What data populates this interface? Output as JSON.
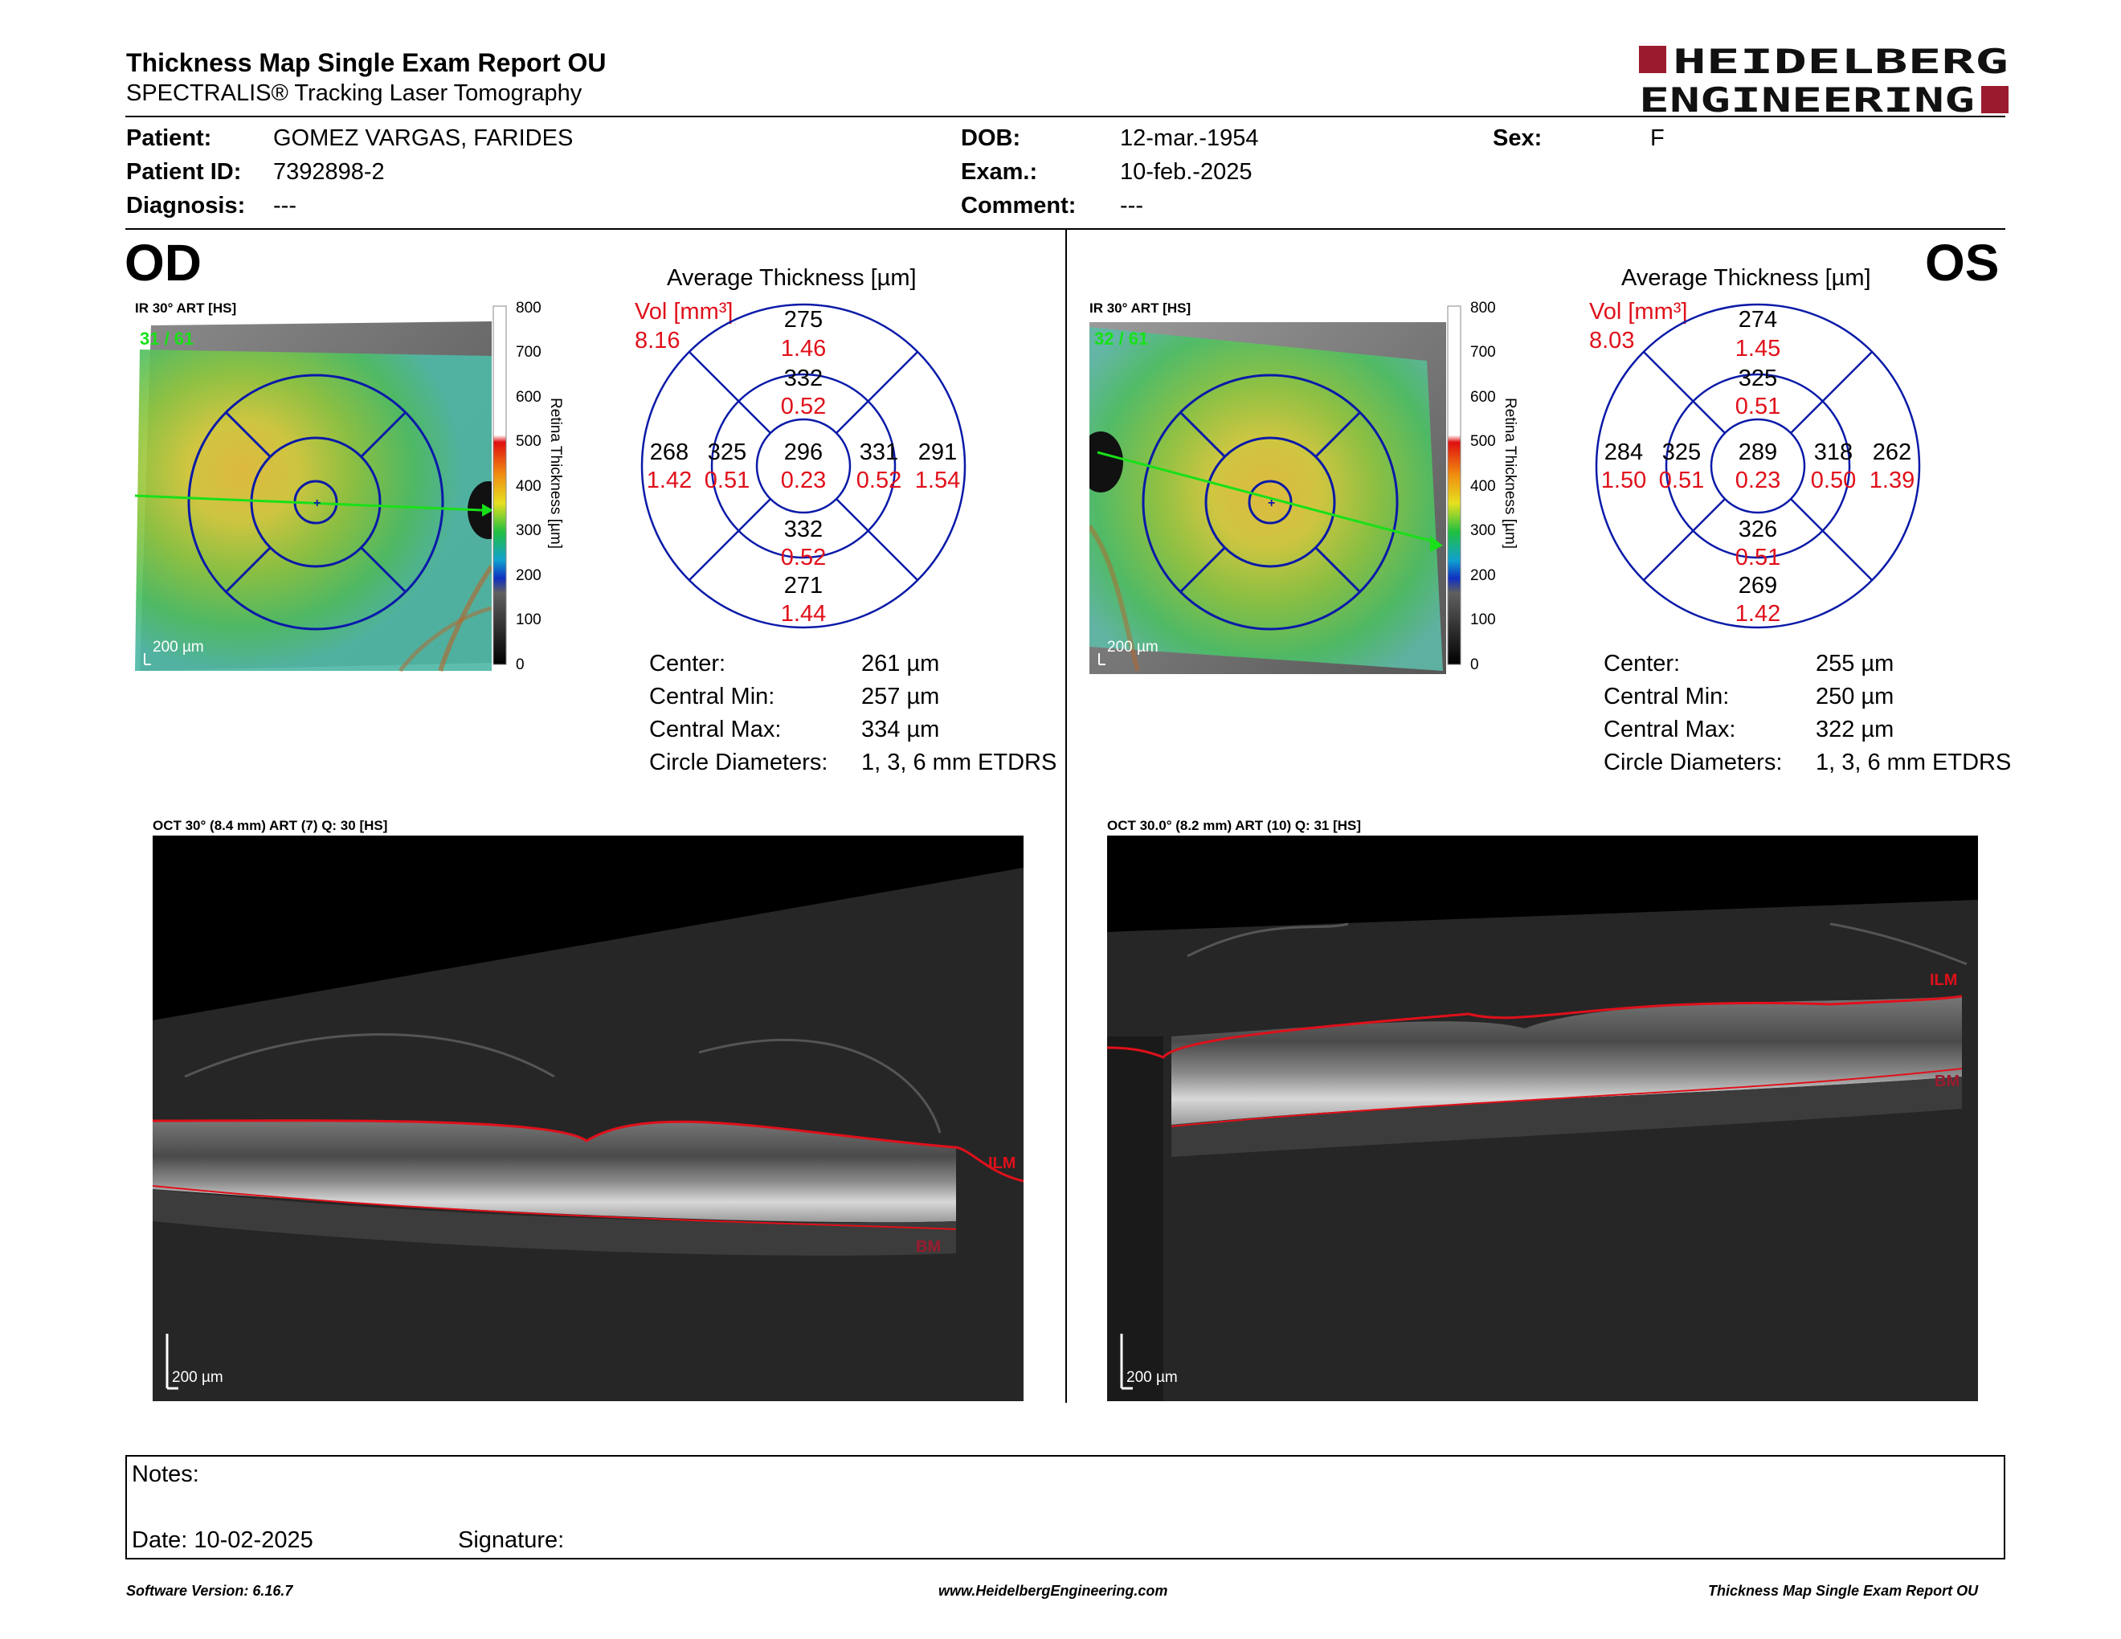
{
  "header": {
    "title": "Thickness Map Single Exam Report OU",
    "subtitle": "SPECTRALIS® Tracking Laser Tomography",
    "logo_line1": "HEIDELBERG",
    "logo_line2": "ENGINEERING"
  },
  "patient": {
    "patient_label": "Patient:",
    "patient_value": "GOMEZ VARGAS, FARIDES",
    "id_label": "Patient ID:",
    "id_value": "7392898-2",
    "diag_label": "Diagnosis:",
    "diag_value": "---",
    "dob_label": "DOB:",
    "dob_value": "12-mar.-1954",
    "exam_label": "Exam.:",
    "exam_value": "10-feb.-2025",
    "comment_label": "Comment:",
    "comment_value": "---",
    "sex_label": "Sex:",
    "sex_value": "F"
  },
  "od": {
    "eye": "OD",
    "ir_caption": "IR 30° ART [HS]",
    "frame_counter": "31 / 61",
    "scale": "200 µm",
    "colorbar_ticks": [
      "800",
      "700",
      "600",
      "500",
      "400",
      "300",
      "200",
      "100",
      "0"
    ],
    "colorbar_label": "Retina Thickness [µm]",
    "avg_title": "Average Thickness [µm]",
    "vol_label": "Vol [mm³]",
    "vol_value": "8.16",
    "etdrs": {
      "center": [
        "296",
        "0.23"
      ],
      "inner_sup": [
        "332",
        "0.52"
      ],
      "inner_inf": [
        "332",
        "0.52"
      ],
      "inner_nas_left": [
        "325",
        "0.51"
      ],
      "inner_right": [
        "331",
        "0.52"
      ],
      "outer_sup": [
        "275",
        "1.46"
      ],
      "outer_inf": [
        "271",
        "1.44"
      ],
      "outer_left": [
        "268",
        "1.42"
      ],
      "outer_right": [
        "291",
        "1.54"
      ]
    },
    "stats": {
      "center_label": "Center:",
      "center_value": "261 µm",
      "min_label": "Central Min:",
      "min_value": "257 µm",
      "max_label": "Central Max:",
      "max_value": "334 µm",
      "diam_label": "Circle Diameters:",
      "diam_value": "1, 3, 6 mm ETDRS"
    },
    "oct_caption": "OCT 30° (8.4 mm) ART (7) Q: 30 [HS]",
    "ilm": "ILM",
    "bm": "BM",
    "oct_scale": "200 µm"
  },
  "os": {
    "eye": "OS",
    "ir_caption": "IR 30° ART [HS]",
    "frame_counter": "32 / 61",
    "scale": "200 µm",
    "colorbar_ticks": [
      "800",
      "700",
      "600",
      "500",
      "400",
      "300",
      "200",
      "100",
      "0"
    ],
    "colorbar_label": "Retina Thickness [µm]",
    "avg_title": "Average Thickness [µm]",
    "vol_label": "Vol [mm³]",
    "vol_value": "8.03",
    "etdrs": {
      "center": [
        "289",
        "0.23"
      ],
      "inner_sup": [
        "325",
        "0.51"
      ],
      "inner_inf": [
        "326",
        "0.51"
      ],
      "inner_nas_left": [
        "325",
        "0.51"
      ],
      "inner_right": [
        "318",
        "0.50"
      ],
      "outer_sup": [
        "274",
        "1.45"
      ],
      "outer_inf": [
        "269",
        "1.42"
      ],
      "outer_left": [
        "284",
        "1.50"
      ],
      "outer_right": [
        "262",
        "1.39"
      ]
    },
    "stats": {
      "center_label": "Center:",
      "center_value": "255 µm",
      "min_label": "Central Min:",
      "min_value": "250 µm",
      "max_label": "Central Max:",
      "max_value": "322 µm",
      "diam_label": "Circle Diameters:",
      "diam_value": "1, 3, 6 mm ETDRS"
    },
    "oct_caption": "OCT 30.0° (8.2 mm) ART (10) Q: 31 [HS]",
    "ilm": "ILM",
    "bm": "BM",
    "oct_scale": "200 µm"
  },
  "notes": {
    "notes_label": "Notes:",
    "date_label": "Date: 10-02-2025",
    "signature_label": "Signature:"
  },
  "footer": {
    "software": "Software Version: 6.16.7",
    "url": "www.HeidelbergEngineering.com",
    "report": "Thickness Map Single Exam Report OU"
  },
  "colors": {
    "brand_red": "#9b1b2e",
    "grid_blue": "#0a1aa8",
    "value_red": "#e0101a",
    "frame_green": "#19e019"
  }
}
